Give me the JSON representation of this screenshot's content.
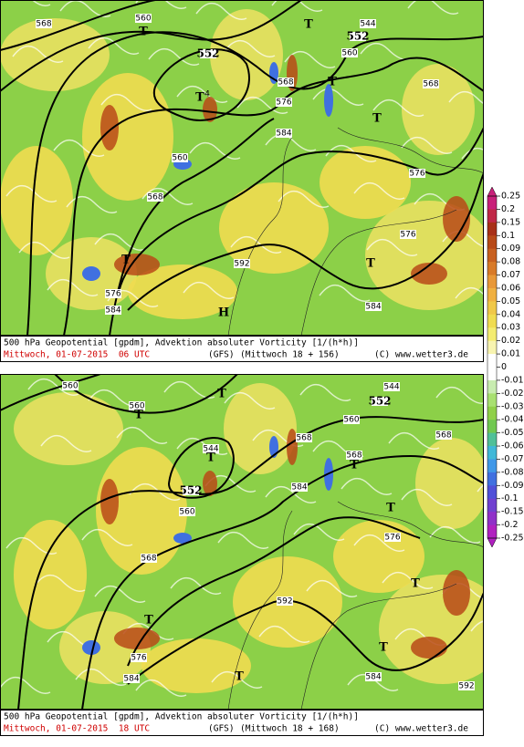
{
  "panels": [
    {
      "labels": [
        "568",
        "560",
        "T",
        "T",
        "544",
        "552",
        "560",
        "552",
        "T",
        "4",
        "568",
        "T",
        "576",
        "568",
        "T",
        "584",
        "560",
        "576",
        "568",
        "576",
        "T",
        "T",
        "592",
        "576",
        "584",
        "584",
        "H"
      ],
      "caption": {
        "title": "500 hPa Geopotential [gpdm], Advektion absoluter Vorticity [1/(h*h)]",
        "date": "Mittwoch, 01-07-2015  06 UTC",
        "model": "(GFS)",
        "run": "(Mittwoch 18 + 156)",
        "credit": "(C) www.wetter3.de"
      }
    },
    {
      "labels": [
        "560",
        "560",
        "T",
        "T",
        "544",
        "552",
        "560",
        "544",
        "T",
        "568",
        "568",
        "552",
        "584",
        "568",
        "T",
        "T",
        "560",
        "576",
        "568",
        "T",
        "592",
        "T",
        "T",
        "576",
        "584",
        "584",
        "T",
        "592"
      ],
      "caption": {
        "title": "500 hPa Geopotential [gpdm], Advektion absoluter Vorticity [1/(h*h)]",
        "date": "Mittwoch, 01-07-2015  18 UTC",
        "model": "(GFS)",
        "run": "(Mittwoch 18 + 168)",
        "credit": "(C) www.wetter3.de"
      }
    }
  ],
  "colorbar": {
    "ticks": [
      0.25,
      0.2,
      0.15,
      0.1,
      0.09,
      0.08,
      0.07,
      0.06,
      0.05,
      0.04,
      0.03,
      0.02,
      0.01,
      0,
      -0.01,
      -0.02,
      -0.03,
      -0.04,
      -0.05,
      -0.06,
      -0.07,
      -0.08,
      -0.09,
      -0.1,
      -0.15,
      -0.2,
      -0.25
    ],
    "colors": [
      "#c8207a",
      "#c02848",
      "#a83018",
      "#b84a18",
      "#c86020",
      "#d87a28",
      "#e89838",
      "#f0b040",
      "#f0c848",
      "#f0dc50",
      "#f4ec70",
      "#f8f4b0",
      "#ffffff",
      "#ffffff",
      "#c8ecb0",
      "#a8e070",
      "#90d048",
      "#70c850",
      "#50c098",
      "#40b8d8",
      "#4098e8",
      "#4070e0",
      "#5050d8",
      "#7040d0",
      "#9030c8",
      "#b020c0"
    ]
  }
}
